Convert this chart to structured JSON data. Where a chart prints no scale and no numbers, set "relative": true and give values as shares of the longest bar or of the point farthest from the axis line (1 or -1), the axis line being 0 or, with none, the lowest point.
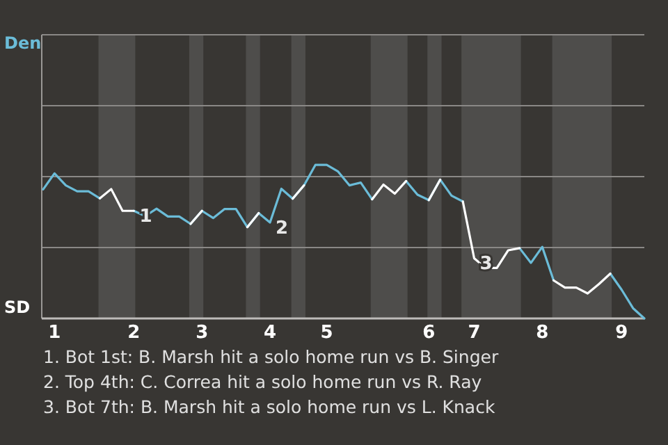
{
  "chart_data": {
    "type": "line",
    "relative": true,
    "categories": [
      null,
      "1",
      null,
      null,
      null,
      null,
      null,
      null,
      "2",
      null,
      null,
      null,
      null,
      null,
      "3",
      null,
      null,
      null,
      null,
      null,
      "4",
      null,
      null,
      null,
      null,
      "5",
      null,
      null,
      null,
      null,
      null,
      null,
      null,
      null,
      "6",
      null,
      null,
      null,
      "7",
      null,
      null,
      null,
      null,
      null,
      "8",
      null,
      null,
      null,
      null,
      null,
      null,
      "9",
      null,
      null
    ],
    "series": [
      {
        "color": "#6bbcd8",
        "values": [
          0.841,
          0.945,
          0.867,
          0.828,
          0.828,
          0.782,
          null,
          null,
          0.701,
          0.667,
          0.715,
          0.664,
          0.664,
          0.616,
          0.701,
          0.654,
          0.713,
          0.713,
          0.595,
          0.686,
          0.625,
          0.845,
          0.78,
          0.867,
          1,
          1,
          0.957,
          0.867,
          0.885,
          0.776,
          null,
          null,
          0.895,
          0.806,
          0.771,
          0.904,
          0.8,
          0.762,
          null,
          null,
          null,
          null,
          0.458,
          0.362,
          0.466,
          0.248,
          null,
          null,
          null,
          null,
          0.292,
          0.187,
          0.067,
          0
        ]
      },
      {
        "color": "#ffffff",
        "values": [
          null,
          null,
          null,
          null,
          null,
          0.782,
          0.843,
          0.701,
          0.701,
          null,
          null,
          null,
          null,
          0.616,
          0.701,
          null,
          null,
          null,
          0.595,
          0.686,
          null,
          null,
          0.78,
          0.867,
          null,
          null,
          null,
          null,
          null,
          0.776,
          0.872,
          0.813,
          0.895,
          null,
          0.771,
          0.904,
          null,
          0.762,
          0.392,
          0.329,
          0.329,
          0.444,
          0.458,
          null,
          null,
          0.248,
          0.201,
          0.201,
          0.163,
          0.224,
          0.292,
          null,
          null,
          null
        ]
      }
    ],
    "annotations": [
      "Den",
      "SD",
      {
        "text": "1",
        "x": "2",
        "y": 0.701
      },
      {
        "text": "2",
        "x": "4",
        "y": 0.625
      },
      {
        "text": "3",
        "x": "7",
        "y": 0.392
      },
      "1. Bot 1st: B. Marsh hit a solo home run vs B. Singer",
      "2. Top 4th: C. Correa hit a solo home run vs R. Ray",
      "3. Bot 7th: B. Marsh hit a solo home run vs L. Knack"
    ],
    "ref_lines": [
      {
        "axis": "y",
        "value": 0.462,
        "color": "#8a8886"
      },
      {
        "axis": "y",
        "value": 0.924,
        "color": "#8a8886"
      },
      {
        "axis": "y",
        "value": 1.386,
        "color": "#8a8886"
      },
      {
        "axis": "y",
        "value": 1.848,
        "color": "#8a8886"
      }
    ],
    "marker": "none"
  }
}
